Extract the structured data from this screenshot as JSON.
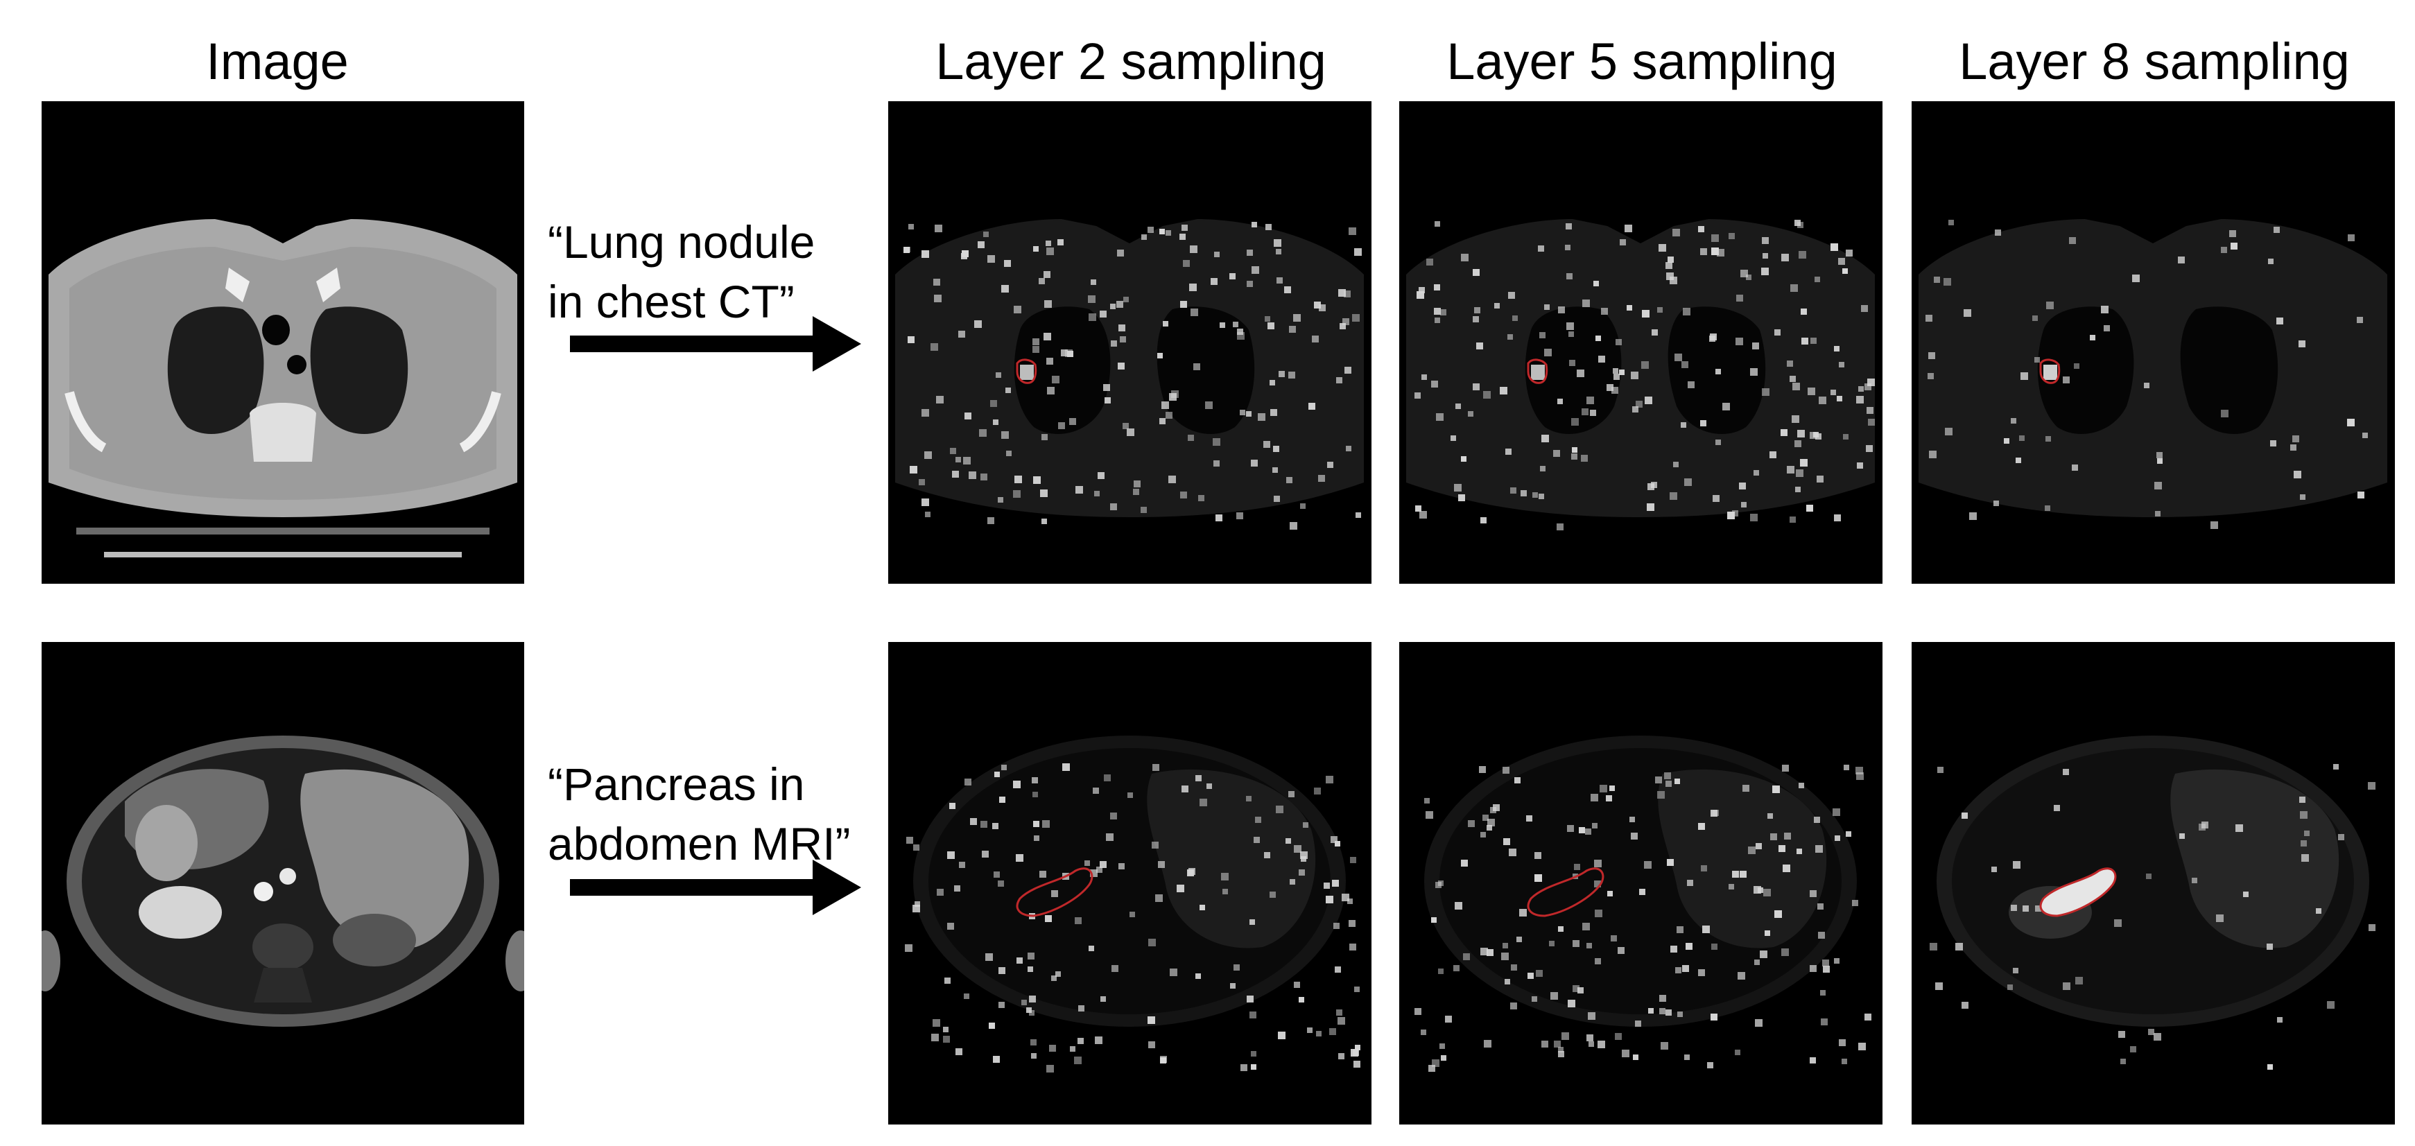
{
  "column_headers": {
    "image": "Image",
    "layer2": "Layer 2 sampling",
    "layer5": "Layer 5 sampling",
    "layer8": "Layer 8 sampling"
  },
  "rows": [
    {
      "id": "lung",
      "prompt_line1": "“Lung nodule",
      "prompt_line2": "in chest CT”",
      "modality": "chest CT",
      "target": "lung nodule",
      "sampling_density": {
        "layer2": "dense",
        "layer5": "dense",
        "layer8": "sparse"
      }
    },
    {
      "id": "pancreas",
      "prompt_line1": "“Pancreas in",
      "prompt_line2": "abdomen MRI”",
      "modality": "abdomen MRI",
      "target": "pancreas",
      "sampling_density": {
        "layer2": "dense",
        "layer5": "dense",
        "layer8": "sparse, concentrated on target"
      }
    }
  ],
  "colors": {
    "background": "#ffffff",
    "panel": "#000000",
    "target_outline": "#c0282a",
    "sample_points": "#d8d8d8"
  }
}
